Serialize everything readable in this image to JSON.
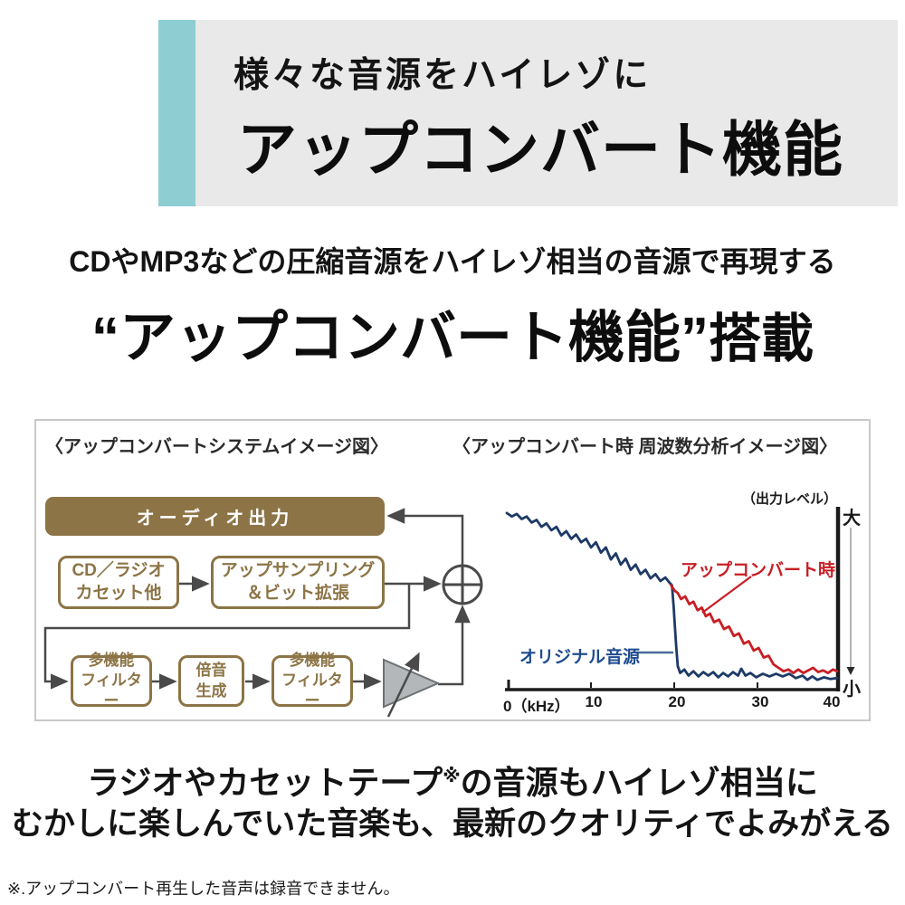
{
  "header": {
    "small_title": "様々な音源をハイレゾに",
    "big_title": "アップコンバート機能",
    "stripe_color": "#8ecdd2",
    "banner_color": "#e9e9e9"
  },
  "intro": {
    "line": "CDやMP3などの圧縮音源をハイレゾ相当の音源で再現する",
    "quote_open": "“",
    "quote_main": "アップコンバート機能",
    "quote_close": "”",
    "suffix": "搭載"
  },
  "diagram": {
    "left": {
      "title": "〈アップコンバートシステムイメージ図〉",
      "audio_out": "オーディオ出力",
      "source_line1": "CD／ラジオ",
      "source_line2": "カセット他",
      "upsample_line1": "アップサンプリング",
      "upsample_line2": "＆ビット拡張",
      "filter1_line1": "多機能",
      "filter1_line2": "フィルター",
      "harmonic_line1": "倍音",
      "harmonic_line2": "生成",
      "filter2_line1": "多機能",
      "filter2_line2": "フィルター",
      "accent_color": "#8c7446"
    },
    "right": {
      "title": "〈アップコンバート時 周波数分析イメージ図〉",
      "output_level_label": "（出力レベル）",
      "y_max_label": "大",
      "y_min_label": "小"
    }
  },
  "chart_data": {
    "type": "line",
    "title": "アップコンバート時 周波数分析イメージ図",
    "xlabel": "kHz",
    "ylabel": "出力レベル（大〜小）",
    "xlim": [
      0,
      40
    ],
    "x_ticks": [
      0,
      10,
      20,
      30,
      40
    ],
    "x_tick_labels": [
      "0（kHz）",
      "10",
      "20",
      "30",
      "40"
    ],
    "grid": false,
    "legend_position": "inline-annotations",
    "series": [
      {
        "name": "オリジナル音源",
        "data_name": "original-source-curve",
        "color": "#1e3a66",
        "points": [
          [
            0,
            99
          ],
          [
            0.6,
            97
          ],
          [
            1.2,
            98.5
          ],
          [
            1.8,
            95.5
          ],
          [
            2.4,
            97
          ],
          [
            3,
            93.5
          ],
          [
            3.6,
            95
          ],
          [
            4.2,
            91
          ],
          [
            4.8,
            93
          ],
          [
            5.4,
            89
          ],
          [
            6,
            91
          ],
          [
            6.6,
            86
          ],
          [
            7.2,
            88.5
          ],
          [
            7.8,
            84
          ],
          [
            8.4,
            86.5
          ],
          [
            9,
            82
          ],
          [
            9.6,
            84
          ],
          [
            10.2,
            79
          ],
          [
            10.8,
            82
          ],
          [
            11.4,
            76
          ],
          [
            12,
            79
          ],
          [
            12.6,
            72
          ],
          [
            13.2,
            75.5
          ],
          [
            13.8,
            69
          ],
          [
            14.4,
            72.5
          ],
          [
            15,
            66
          ],
          [
            15.6,
            69
          ],
          [
            16.2,
            63.5
          ],
          [
            16.8,
            66
          ],
          [
            17.4,
            61
          ],
          [
            18,
            63.5
          ],
          [
            18.6,
            59.5
          ],
          [
            19.2,
            61.5
          ],
          [
            19.7,
            58.5
          ],
          [
            20,
            57
          ],
          [
            20.2,
            45
          ],
          [
            20.4,
            30
          ],
          [
            20.5,
            22
          ],
          [
            20.7,
            10
          ],
          [
            21,
            6
          ],
          [
            21.5,
            8
          ],
          [
            22,
            4.5
          ],
          [
            22.6,
            7
          ],
          [
            23.2,
            4
          ],
          [
            23.8,
            6.5
          ],
          [
            24.4,
            4.5
          ],
          [
            25,
            6.5
          ],
          [
            25.6,
            3.5
          ],
          [
            26.2,
            6
          ],
          [
            26.8,
            4
          ],
          [
            27.4,
            6.5
          ],
          [
            28,
            4.5
          ],
          [
            28.4,
            8.5
          ],
          [
            28.9,
            4.5
          ],
          [
            29.5,
            6
          ],
          [
            30.2,
            3.5
          ],
          [
            31,
            5.5
          ],
          [
            31.8,
            4
          ],
          [
            32.6,
            5.5
          ],
          [
            33.4,
            4
          ],
          [
            34.2,
            5.5
          ],
          [
            35,
            3
          ],
          [
            35.8,
            4.5
          ],
          [
            36.4,
            2
          ],
          [
            37,
            4
          ],
          [
            37.6,
            2
          ],
          [
            38.4,
            3.5
          ],
          [
            39.2,
            2.5
          ],
          [
            40,
            3
          ]
        ]
      },
      {
        "name": "アップコンバート時",
        "data_name": "upconvert-curve",
        "color": "#c81e24",
        "points": [
          [
            19.9,
            57
          ],
          [
            20.3,
            54
          ],
          [
            20.7,
            52.5
          ],
          [
            21.1,
            49
          ],
          [
            21.6,
            50.5
          ],
          [
            22.1,
            46
          ],
          [
            22.6,
            47.5
          ],
          [
            23.1,
            42.5
          ],
          [
            23.6,
            44
          ],
          [
            24.1,
            39
          ],
          [
            24.6,
            40.5
          ],
          [
            25.1,
            35.5
          ],
          [
            25.7,
            37
          ],
          [
            26.3,
            31.5
          ],
          [
            26.9,
            33
          ],
          [
            27.5,
            27.5
          ],
          [
            28.1,
            29
          ],
          [
            28.7,
            23
          ],
          [
            29.3,
            24.5
          ],
          [
            29.9,
            19
          ],
          [
            30.5,
            20.5
          ],
          [
            31.1,
            15
          ],
          [
            31.7,
            16
          ],
          [
            32.3,
            11
          ],
          [
            32.9,
            9
          ],
          [
            33.5,
            7
          ],
          [
            34.1,
            8
          ],
          [
            34.7,
            6
          ],
          [
            35.3,
            8
          ],
          [
            35.9,
            6
          ],
          [
            36.5,
            7.5
          ],
          [
            37.1,
            9
          ],
          [
            37.7,
            6.5
          ],
          [
            38.3,
            7.5
          ],
          [
            38.9,
            6
          ],
          [
            39.5,
            8
          ],
          [
            40,
            7
          ]
        ]
      }
    ],
    "annotations": [
      {
        "text": "アップコンバート時",
        "color": "#c81e24"
      },
      {
        "text": "オリジナル音源",
        "color": "#1f4c8f"
      }
    ]
  },
  "outro": {
    "line1_pre": "ラジオやカセットテープ",
    "line1_sup": "※",
    "line1_post": "の音源もハイレゾ相当に",
    "line2": "むかしに楽しんでいた音楽も、最新のクオリティでよみがえる"
  },
  "footnote": "※.アップコンバート再生した音声は録音できません。"
}
